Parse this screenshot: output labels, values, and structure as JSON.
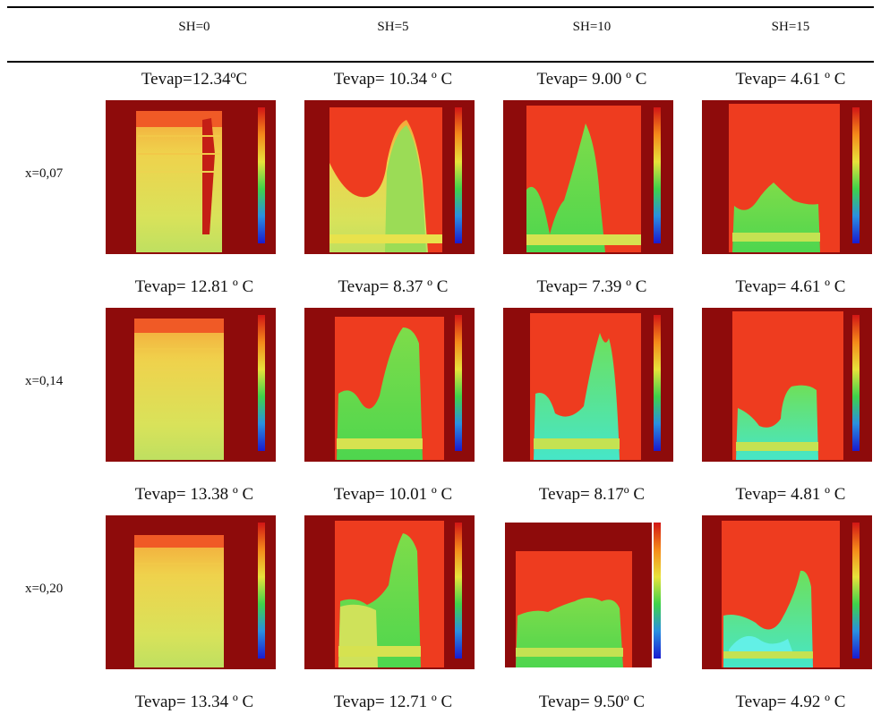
{
  "columns": [
    "SH=0",
    "SH=5",
    "SH=10",
    "SH=15"
  ],
  "rows": [
    {
      "label": "x=0,07",
      "tevap_above": [
        "Tevap=12.34ºC",
        "Tevap= 10.34 º C",
        "Tevap= 9.00 º C",
        "Tevap= 4.61 º C"
      ]
    },
    {
      "label": "x=0,14",
      "tevap_above": [
        "Tevap= 12.81 º C",
        "Tevap= 8.37 º C",
        "Tevap= 7.39 º C",
        "Tevap= 4.61 º C"
      ]
    },
    {
      "label": "x=0,20",
      "tevap_above": [
        "Tevap= 13.38 º C",
        "Tevap= 10.01 º C",
        "Tevap= 8.17º C",
        "Tevap= 4.81 º C"
      ]
    }
  ],
  "bottom_tevap": [
    "Tevap= 13.34 º C",
    "Tevap= 12.71 º C",
    "Tevap= 9.50º C",
    "Tevap= 4.92 º C"
  ],
  "colors": {
    "background_red": "#8e0b0b",
    "hot_red": "#f0361e",
    "warm_yellow": "#e9e048",
    "cool_green": "#52d84a"
  }
}
